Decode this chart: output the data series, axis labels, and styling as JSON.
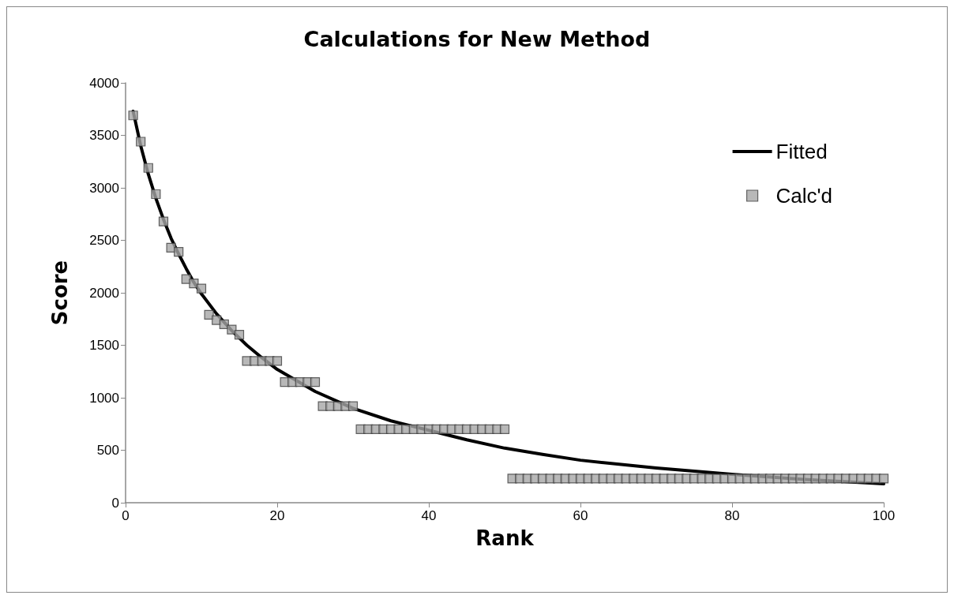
{
  "chart_data": {
    "type": "scatter",
    "title": "Calculations for New Method",
    "xlabel": "Rank",
    "ylabel": "Score",
    "xlim": [
      0,
      100
    ],
    "xticks": [
      0,
      20,
      40,
      60,
      80,
      100
    ],
    "ylim": [
      0,
      4000
    ],
    "yticks": [
      0,
      500,
      1000,
      1500,
      2000,
      2500,
      3000,
      3500,
      4000
    ],
    "grid": false,
    "legend": "top right",
    "series": [
      {
        "name": "Fitted",
        "type": "line",
        "color": "#000000",
        "marker": "none",
        "line_style": "solid",
        "x": [
          1,
          2,
          3,
          4,
          5,
          6,
          7,
          8,
          9,
          10,
          12,
          14,
          16,
          18,
          20,
          25,
          30,
          35,
          40,
          45,
          50,
          55,
          60,
          70,
          80,
          90,
          100
        ],
        "values": [
          3730,
          3400,
          3130,
          2900,
          2700,
          2520,
          2370,
          2230,
          2100,
          1990,
          1800,
          1640,
          1500,
          1380,
          1270,
          1060,
          900,
          780,
          690,
          600,
          520,
          460,
          405,
          330,
          270,
          220,
          180
        ]
      },
      {
        "name": "Calc'd",
        "color": "#a6a6a6",
        "marker": "square",
        "x": [
          1,
          2,
          3,
          4,
          5,
          6,
          7,
          8,
          9,
          10,
          11,
          12,
          13,
          14,
          15,
          16,
          17,
          18,
          19,
          20,
          21,
          22,
          23,
          24,
          25,
          26,
          27,
          28,
          29,
          30,
          31,
          32,
          33,
          34,
          35,
          36,
          37,
          38,
          39,
          40,
          41,
          42,
          43,
          44,
          45,
          46,
          47,
          48,
          49,
          50,
          51,
          52,
          53,
          54,
          55,
          56,
          57,
          58,
          59,
          60,
          61,
          62,
          63,
          64,
          65,
          66,
          67,
          68,
          69,
          70,
          71,
          72,
          73,
          74,
          75,
          76,
          77,
          78,
          79,
          80,
          81,
          82,
          83,
          84,
          85,
          86,
          87,
          88,
          89,
          90,
          91,
          92,
          93,
          94,
          95,
          96,
          97,
          98,
          99,
          100
        ],
        "values": [
          3690,
          3440,
          3190,
          2940,
          2680,
          2430,
          2390,
          2130,
          2090,
          2040,
          1790,
          1740,
          1700,
          1650,
          1600,
          1350,
          1350,
          1350,
          1350,
          1350,
          1150,
          1150,
          1150,
          1150,
          1150,
          920,
          920,
          920,
          920,
          920,
          700,
          700,
          700,
          700,
          700,
          700,
          700,
          700,
          700,
          700,
          700,
          700,
          700,
          700,
          700,
          700,
          700,
          700,
          700,
          700,
          230,
          230,
          230,
          230,
          230,
          230,
          230,
          230,
          230,
          230,
          230,
          230,
          230,
          230,
          230,
          230,
          230,
          230,
          230,
          230,
          230,
          230,
          230,
          230,
          230,
          230,
          230,
          230,
          230,
          230,
          230,
          230,
          230,
          230,
          230,
          230,
          230,
          230,
          230,
          230,
          230,
          230,
          230,
          230,
          230,
          230,
          230,
          230,
          230,
          230
        ]
      }
    ]
  }
}
